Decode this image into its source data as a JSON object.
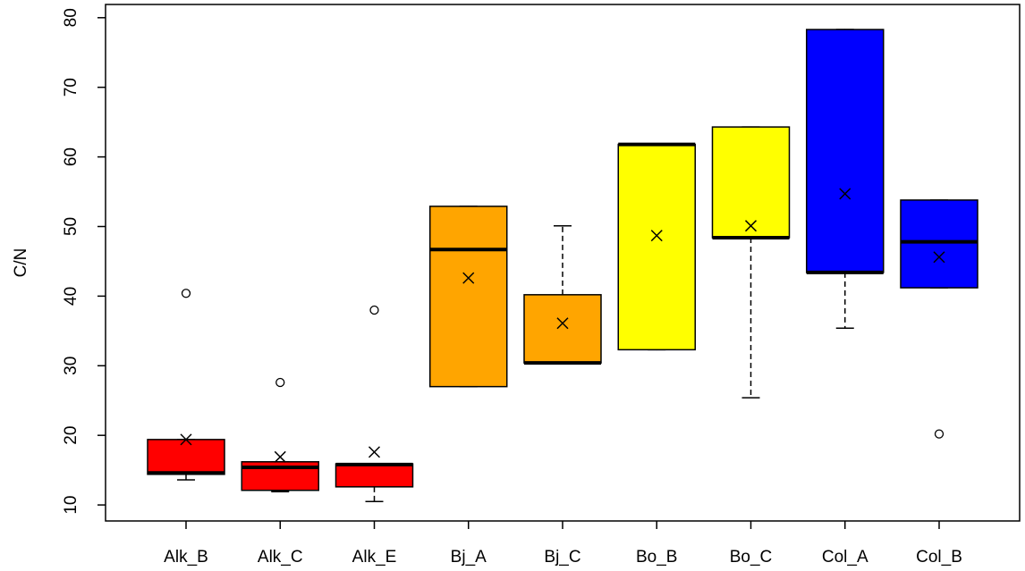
{
  "chart_data": {
    "type": "boxplot",
    "y_label": "C/N",
    "categories": [
      "Alk_B",
      "Alk_C",
      "Alk_E",
      "Bj_A",
      "Bj_C",
      "Bo_B",
      "Bo_C",
      "Col_A",
      "Col_B"
    ],
    "colors": [
      "#ff0000",
      "#ff0000",
      "#ff0000",
      "#ffa500",
      "#ffa500",
      "#ffff00",
      "#ffff00",
      "#0000ff",
      "#0000ff"
    ],
    "whislo": [
      13.6,
      11.9,
      10.5,
      27.0,
      30.4,
      32.3,
      25.4,
      35.4,
      41.2
    ],
    "q1": [
      14.4,
      12.1,
      12.6,
      27.0,
      30.4,
      32.3,
      48.4,
      43.4,
      41.2
    ],
    "med": [
      14.6,
      15.4,
      15.8,
      46.7,
      30.4,
      61.8,
      48.4,
      43.4,
      47.8
    ],
    "q3": [
      19.4,
      16.2,
      15.9,
      52.9,
      40.2,
      61.8,
      64.3,
      78.3,
      53.8
    ],
    "whishi": [
      19.4,
      16.2,
      15.9,
      52.9,
      50.1,
      61.8,
      64.3,
      78.3,
      53.8
    ],
    "mean": [
      19.4,
      16.9,
      17.6,
      42.6,
      36.1,
      48.7,
      50.1,
      54.7,
      45.6
    ],
    "outliers": [
      [
        40.4
      ],
      [
        27.6
      ],
      [
        38.0
      ],
      [],
      [],
      [],
      [],
      [],
      [
        20.2
      ]
    ],
    "ylim": [
      7.7,
      81.9
    ],
    "yticks": [
      10,
      20,
      30,
      40,
      50,
      60,
      70,
      80
    ]
  }
}
